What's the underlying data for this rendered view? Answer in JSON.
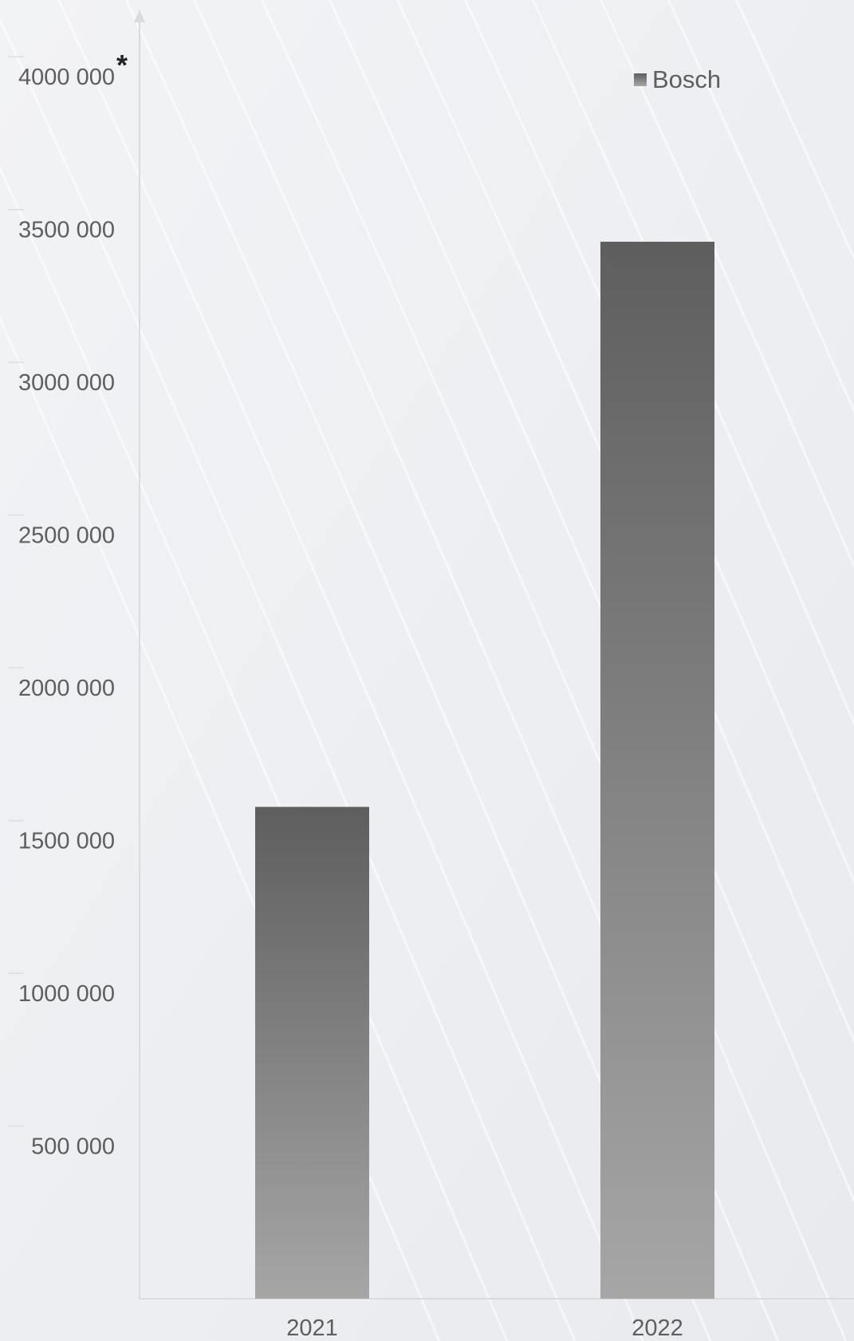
{
  "chart_data": {
    "type": "bar",
    "categories": [
      "2021",
      "2022"
    ],
    "series": [
      {
        "name": "Bosch",
        "values": [
          1610000,
          3460000
        ]
      }
    ],
    "y_ticks": [
      "500 000",
      "1000 000",
      "1500 000",
      "2000 000",
      "2500 000",
      "3000 000",
      "3500 000",
      "4000 000"
    ],
    "y_tick_values": [
      500000,
      1000000,
      1500000,
      2000000,
      2500000,
      3000000,
      3500000,
      4000000
    ],
    "ylim": [
      0,
      4220000
    ],
    "annotation": "*",
    "legend_position": "top-right",
    "grid": false,
    "colors": {
      "bar_top": "#5e5e5e",
      "bar_bottom": "#a6a6a6",
      "axis": "#d9dbde",
      "text": "#5e5e5e"
    }
  }
}
